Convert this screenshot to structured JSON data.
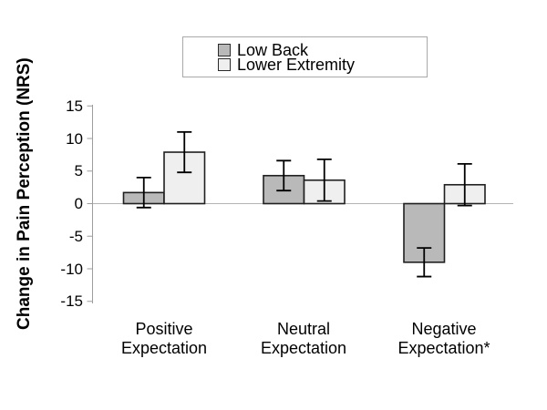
{
  "chart_data": {
    "type": "bar",
    "title": "",
    "xlabel": "",
    "ylabel": "Change in Pain Perception (NRS)",
    "categories": [
      "Positive Expectation",
      "Neutral Expectation",
      "Negative Expectation*"
    ],
    "categories_lines": [
      [
        "Positive",
        "Expectation"
      ],
      [
        "Neutral",
        "Expectation"
      ],
      [
        "Negative",
        "Expectation*"
      ]
    ],
    "series": [
      {
        "name": "Low Back",
        "color": "#b9b9b9",
        "values": [
          1.7,
          4.3,
          -9.0
        ],
        "errors": [
          2.3,
          2.3,
          2.2
        ]
      },
      {
        "name": "Lower Extremity",
        "color": "#efefef",
        "values": [
          7.9,
          3.6,
          2.9
        ],
        "errors": [
          3.1,
          3.2,
          3.2
        ]
      }
    ],
    "error_bars": true,
    "yticks": [
      15,
      10,
      5,
      0,
      -5,
      -10,
      -15
    ],
    "ylim": [
      -15,
      15
    ],
    "grid": false,
    "zero_line": true,
    "legend_position": "top-center",
    "colors": {
      "bar_border": "#1f1f1f",
      "error_bar": "#000000",
      "axis": "#9d9d9d",
      "zero_line": "#b3b3b3",
      "text": "#000000",
      "legend_border": "#a9a9a9",
      "background": "#ffffff"
    }
  }
}
